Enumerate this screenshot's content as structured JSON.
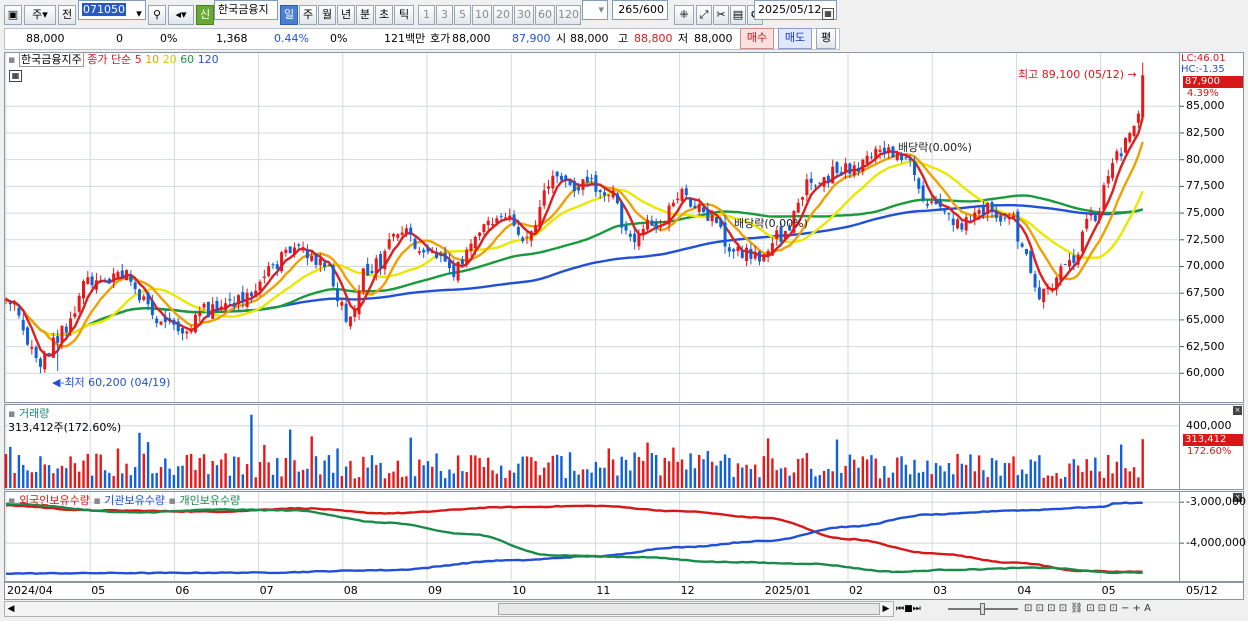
{
  "toolbar": {
    "period_buttons": [
      "일",
      "주",
      "월",
      "년",
      "분",
      "초",
      "틱"
    ],
    "minute_buttons": [
      "1",
      "3",
      "5",
      "10",
      "20",
      "30",
      "60",
      "120"
    ],
    "week_label": "주",
    "prev_label": "전",
    "code": "071050",
    "new_badge": "신",
    "stock_name": "한국금융지",
    "count": "265",
    "count_max": "/600",
    "date": "2025/05/12"
  },
  "quote": {
    "price": "88,000",
    "change": "0",
    "change_pct": "0%",
    "volume": "1,368",
    "volume_pct": "0.44%",
    "turnover_pct": "0%",
    "amount": "121백만",
    "ask_label": "호가",
    "ask1": "88,000",
    "ask2": "87,900",
    "open_label": "시",
    "open": "88,000",
    "high_label": "고",
    "high": "88,800",
    "low_label": "저",
    "low": "88,000",
    "buy_label": "매수",
    "sell_label": "매도",
    "eval_label": "평"
  },
  "price_panel": {
    "stock_name": "한국금융지주",
    "ma_title": "종가 단순",
    "ma_periods": [
      "5",
      "10",
      "20",
      "60",
      "120"
    ],
    "ma_colors": [
      "#e01e1e",
      "#f0a000",
      "#e8e800",
      "#1a9a3a",
      "#2050d8"
    ],
    "lc_label": "LC:46.01",
    "hc_label": "HC:-1.35",
    "current_price_tag": "87,900",
    "current_pct_tag": "4.39%",
    "high_annotation": "최고 89,100 (05/12)",
    "low_annotation": "최저 60,200 (04/19)",
    "dividend_label_1": "배당락(0.00%)",
    "dividend_label_2": "배당락(0.00%)"
  },
  "volume_panel": {
    "title": "거래량",
    "value_text": "313,412주(172.60%)",
    "tag_value": "313,412",
    "tag_pct": "172.60%"
  },
  "holding_panel": {
    "titles": [
      "외국인보유수량",
      "기관보유수량",
      "개인보유수량"
    ],
    "series_colors": [
      "#d81818",
      "#2050d8",
      "#1a8a4a"
    ]
  },
  "chart_data": [
    {
      "type": "candlestick",
      "title": "",
      "y_ticks": [
        60000,
        62500,
        65000,
        67500,
        70000,
        72500,
        75000,
        77500,
        80000,
        82500,
        85000
      ],
      "y_tick_labels": [
        "60,000",
        "62,500",
        "65,000",
        "67,500",
        "70,000",
        "72,500",
        "75,000",
        "77,500",
        "80,000",
        "82,500",
        "85,000"
      ],
      "ylim": [
        57500,
        89800
      ],
      "x_labels": [
        "2024/04",
        "05",
        "06",
        "07",
        "08",
        "09",
        "10",
        "11",
        "12",
        "2025/01",
        "02",
        "03",
        "04",
        "05",
        "05/12"
      ],
      "x_label_months": [
        0,
        1,
        2,
        3,
        4,
        5,
        6,
        7,
        8,
        9,
        10,
        11,
        12,
        13
      ],
      "close_anchors": [
        [
          0,
          66500
        ],
        [
          0.45,
          61200
        ],
        [
          0.6,
          63500
        ],
        [
          1.0,
          68500
        ],
        [
          1.4,
          69500
        ],
        [
          1.8,
          65000
        ],
        [
          2.1,
          64500
        ],
        [
          2.4,
          66000
        ],
        [
          2.8,
          66800
        ],
        [
          3.2,
          70500
        ],
        [
          3.5,
          71500
        ],
        [
          3.8,
          70000
        ],
        [
          4.05,
          65500
        ],
        [
          4.3,
          69500
        ],
        [
          4.7,
          73000
        ],
        [
          5.0,
          71500
        ],
        [
          5.3,
          69500
        ],
        [
          5.6,
          73500
        ],
        [
          5.9,
          74500
        ],
        [
          6.2,
          73000
        ],
        [
          6.5,
          78500
        ],
        [
          6.8,
          77800
        ],
        [
          7.2,
          77000
        ],
        [
          7.4,
          72500
        ],
        [
          7.7,
          74000
        ],
        [
          8.0,
          76500
        ],
        [
          8.3,
          75000
        ],
        [
          8.6,
          72000
        ],
        [
          8.9,
          71000
        ],
        [
          9.2,
          73000
        ],
        [
          9.6,
          78000
        ],
        [
          10.0,
          79000
        ],
        [
          10.4,
          81000
        ],
        [
          10.7,
          79500
        ],
        [
          11.0,
          75500
        ],
        [
          11.3,
          74000
        ],
        [
          11.6,
          75500
        ],
        [
          11.9,
          74500
        ],
        [
          12.3,
          67500
        ],
        [
          12.6,
          70000
        ],
        [
          12.9,
          74500
        ],
        [
          13.2,
          80000
        ],
        [
          13.45,
          84000
        ],
        [
          13.5,
          87900
        ]
      ],
      "series": [
        {
          "name": "5",
          "color": "#e01e1e"
        },
        {
          "name": "10",
          "color": "#f0a000"
        },
        {
          "name": "20",
          "color": "#e8e800"
        },
        {
          "name": "60",
          "color": "#1a9a3a"
        },
        {
          "name": "120",
          "color": "#2050d8"
        }
      ],
      "high": {
        "value": 89100,
        "date": "05/12"
      },
      "low": {
        "value": 60200,
        "date": "04/19"
      },
      "last": 87900
    },
    {
      "type": "bar",
      "title": "거래량",
      "y_ticks": [
        400000
      ],
      "y_tick_labels": [
        "400,000"
      ],
      "ylim": [
        0,
        520000
      ],
      "last": 313412
    },
    {
      "type": "line",
      "title": "외국인보유수량 · 기관보유수량 · 개인보유수량",
      "y_ticks": [
        -3000000,
        -4000000
      ],
      "y_tick_labels": [
        "-3,000,000",
        "-4,000,000"
      ],
      "ylim": [
        -4900000,
        -2800000
      ],
      "series": [
        {
          "name": "외국인보유수량",
          "color": "#d81818",
          "anchors": [
            [
              0,
              -3080000
            ],
            [
              1.0,
              -3200000
            ],
            [
              2.5,
              -3230000
            ],
            [
              3.5,
              -3150000
            ],
            [
              4.5,
              -3270000
            ],
            [
              6.0,
              -3120000
            ],
            [
              7.0,
              -3090000
            ],
            [
              8.0,
              -3220000
            ],
            [
              9.0,
              -3380000
            ],
            [
              10.0,
              -3900000
            ],
            [
              11.0,
              -4250000
            ],
            [
              12.0,
              -4480000
            ],
            [
              12.8,
              -4680000
            ],
            [
              13.2,
              -4700000
            ]
          ]
        },
        {
          "name": "기관보유수량",
          "color": "#2050d8",
          "anchors": [
            [
              0,
              -4740000
            ],
            [
              1.5,
              -4730000
            ],
            [
              3.0,
              -4720000
            ],
            [
              4.5,
              -4660000
            ],
            [
              6.0,
              -4420000
            ],
            [
              7.0,
              -4320000
            ],
            [
              8.0,
              -4100000
            ],
            [
              9.0,
              -3950000
            ],
            [
              10.0,
              -3600000
            ],
            [
              11.0,
              -3300000
            ],
            [
              12.0,
              -3200000
            ],
            [
              13.0,
              -3120000
            ],
            [
              13.2,
              -3020000
            ]
          ]
        },
        {
          "name": "개인보유수량",
          "color": "#1a8a4a",
          "anchors": [
            [
              0,
              -3040000
            ],
            [
              1.5,
              -3250000
            ],
            [
              2.6,
              -3180000
            ],
            [
              3.4,
              -3200000
            ],
            [
              4.5,
              -3500000
            ],
            [
              5.5,
              -3780000
            ],
            [
              6.5,
              -4300000
            ],
            [
              7.5,
              -4340000
            ],
            [
              8.5,
              -4460000
            ],
            [
              9.5,
              -4500000
            ],
            [
              10.6,
              -4700000
            ],
            [
              11.2,
              -4650000
            ],
            [
              12.3,
              -4600000
            ],
            [
              13.2,
              -4720000
            ]
          ]
        }
      ]
    }
  ]
}
